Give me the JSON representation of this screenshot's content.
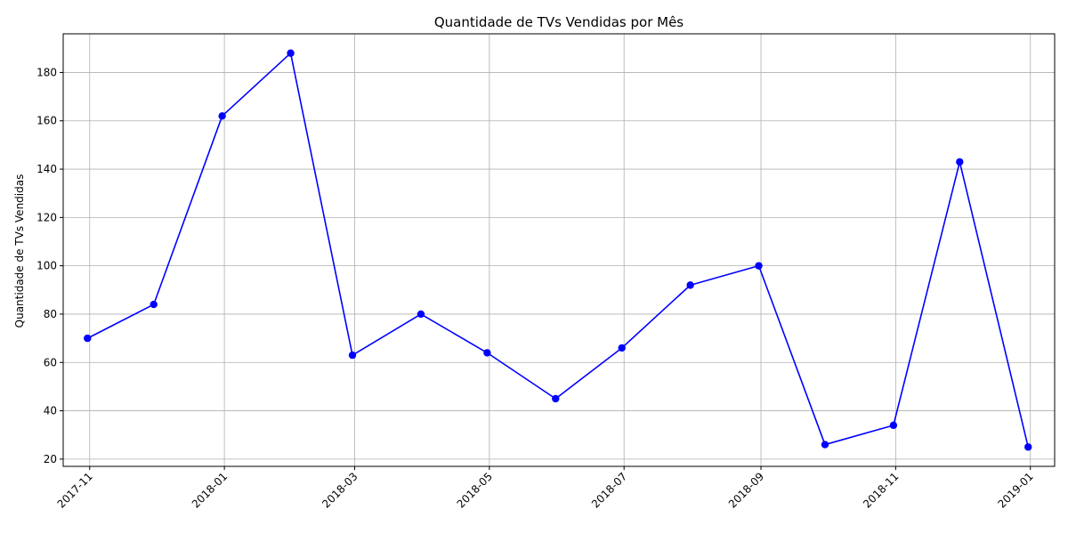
{
  "chart_data": {
    "type": "line",
    "title": "Quantidade de TVs Vendidas por Mês",
    "xlabel": "",
    "ylabel": "Quantidade de TVs Vendidas",
    "x": [
      "2017-10-31",
      "2017-11-30",
      "2017-12-31",
      "2018-01-31",
      "2018-02-28",
      "2018-03-31",
      "2018-04-30",
      "2018-05-31",
      "2018-06-30",
      "2018-07-31",
      "2018-08-31",
      "2018-09-30",
      "2018-10-31",
      "2018-11-30",
      "2018-12-31"
    ],
    "series": [
      {
        "values": [
          70,
          84,
          162,
          188,
          63,
          80,
          64,
          45,
          66,
          92,
          100,
          26,
          34,
          143,
          25
        ],
        "color": "#0000ff"
      }
    ],
    "x_ticks": [
      "2017-11",
      "2018-01",
      "2018-03",
      "2018-05",
      "2018-07",
      "2018-09",
      "2018-11",
      "2019-01"
    ],
    "x_tick_dates": [
      "2017-11-01",
      "2018-01-01",
      "2018-03-01",
      "2018-05-01",
      "2018-07-01",
      "2018-09-01",
      "2018-11-01",
      "2019-01-01"
    ],
    "y_ticks": [
      20,
      40,
      60,
      80,
      100,
      120,
      140,
      160,
      180
    ],
    "xlim": [
      "2017-10-20",
      "2019-01-12"
    ],
    "ylim": [
      17,
      196
    ],
    "grid": true,
    "legend": "none",
    "marker": "circle"
  }
}
